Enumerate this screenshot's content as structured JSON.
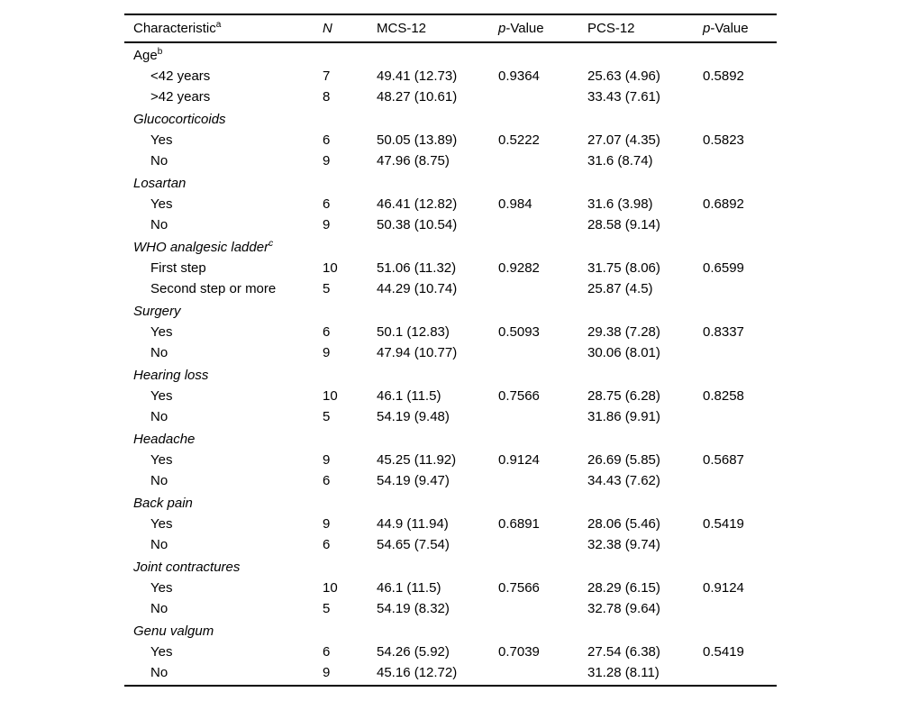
{
  "table": {
    "header": {
      "characteristic": "Characteristic",
      "characteristic_sup": "a",
      "n": "N",
      "mcs12": "MCS-12",
      "p_prefix": "p",
      "p_suffix": "-Value",
      "pcs12": "PCS-12"
    },
    "rows": [
      {
        "type": "group",
        "label": "Age",
        "sup": "b",
        "upright": true
      },
      {
        "type": "item",
        "label": "<42 years",
        "n": "7",
        "mcs": "49.41 (12.73)",
        "p_mcs": "0.9364",
        "pcs": "25.63 (4.96)",
        "p_pcs": "0.5892"
      },
      {
        "type": "item",
        "label": ">42 years",
        "n": "8",
        "mcs": "48.27 (10.61)",
        "p_mcs": "",
        "pcs": "33.43 (7.61)",
        "p_pcs": ""
      },
      {
        "type": "group",
        "label": "Glucocorticoids"
      },
      {
        "type": "item",
        "label": "Yes",
        "n": "6",
        "mcs": "50.05 (13.89)",
        "p_mcs": "0.5222",
        "pcs": "27.07 (4.35)",
        "p_pcs": "0.5823"
      },
      {
        "type": "item",
        "label": "No",
        "n": "9",
        "mcs": "47.96 (8.75)",
        "p_mcs": "",
        "pcs": "31.6 (8.74)",
        "p_pcs": ""
      },
      {
        "type": "group",
        "label": "Losartan"
      },
      {
        "type": "item",
        "label": "Yes",
        "n": "6",
        "mcs": "46.41 (12.82)",
        "p_mcs": "0.984",
        "pcs": "31.6 (3.98)",
        "p_pcs": "0.6892"
      },
      {
        "type": "item",
        "label": "No",
        "n": "9",
        "mcs": "50.38 (10.54)",
        "p_mcs": "",
        "pcs": "28.58 (9.14)",
        "p_pcs": ""
      },
      {
        "type": "group",
        "label": "WHO analgesic ladder",
        "sup": "c"
      },
      {
        "type": "item",
        "label": "First step",
        "n": "10",
        "mcs": "51.06 (11.32)",
        "p_mcs": "0.9282",
        "pcs": "31.75 (8.06)",
        "p_pcs": "0.6599"
      },
      {
        "type": "item",
        "label": "Second step or more",
        "n": "5",
        "mcs": "44.29 (10.74)",
        "p_mcs": "",
        "pcs": "25.87 (4.5)",
        "p_pcs": ""
      },
      {
        "type": "group",
        "label": "Surgery"
      },
      {
        "type": "item",
        "label": "Yes",
        "n": "6",
        "mcs": "50.1 (12.83)",
        "p_mcs": "0.5093",
        "pcs": "29.38 (7.28)",
        "p_pcs": "0.8337"
      },
      {
        "type": "item",
        "label": "No",
        "n": "9",
        "mcs": "47.94 (10.77)",
        "p_mcs": "",
        "pcs": "30.06 (8.01)",
        "p_pcs": ""
      },
      {
        "type": "group",
        "label": "Hearing loss"
      },
      {
        "type": "item",
        "label": "Yes",
        "n": "10",
        "mcs": "46.1 (11.5)",
        "p_mcs": "0.7566",
        "pcs": "28.75 (6.28)",
        "p_pcs": "0.8258"
      },
      {
        "type": "item",
        "label": "No",
        "n": "5",
        "mcs": "54.19 (9.48)",
        "p_mcs": "",
        "pcs": "31.86 (9.91)",
        "p_pcs": ""
      },
      {
        "type": "group",
        "label": "Headache"
      },
      {
        "type": "item",
        "label": "Yes",
        "n": "9",
        "mcs": "45.25 (11.92)",
        "p_mcs": "0.9124",
        "pcs": "26.69 (5.85)",
        "p_pcs": "0.5687"
      },
      {
        "type": "item",
        "label": "No",
        "n": "6",
        "mcs": "54.19 (9.47)",
        "p_mcs": "",
        "pcs": "34.43 (7.62)",
        "p_pcs": ""
      },
      {
        "type": "group",
        "label": "Back pain"
      },
      {
        "type": "item",
        "label": "Yes",
        "n": "9",
        "mcs": "44.9 (11.94)",
        "p_mcs": "0.6891",
        "pcs": "28.06 (5.46)",
        "p_pcs": "0.5419"
      },
      {
        "type": "item",
        "label": "No",
        "n": "6",
        "mcs": "54.65 (7.54)",
        "p_mcs": "",
        "pcs": "32.38 (9.74)",
        "p_pcs": ""
      },
      {
        "type": "group",
        "label": "Joint contractures"
      },
      {
        "type": "item",
        "label": "Yes",
        "n": "10",
        "mcs": "46.1 (11.5)",
        "p_mcs": "0.7566",
        "pcs": "28.29 (6.15)",
        "p_pcs": "0.9124"
      },
      {
        "type": "item",
        "label": "No",
        "n": "5",
        "mcs": "54.19 (8.32)",
        "p_mcs": "",
        "pcs": "32.78 (9.64)",
        "p_pcs": ""
      },
      {
        "type": "group",
        "label": "Genu valgum"
      },
      {
        "type": "item",
        "label": "Yes",
        "n": "6",
        "mcs": "54.26 (5.92)",
        "p_mcs": "0.7039",
        "pcs": "27.54 (6.38)",
        "p_pcs": "0.5419"
      },
      {
        "type": "item",
        "label": "No",
        "n": "9",
        "mcs": "45.16 (12.72)",
        "p_mcs": "",
        "pcs": "31.28 (8.11)",
        "p_pcs": ""
      }
    ]
  }
}
